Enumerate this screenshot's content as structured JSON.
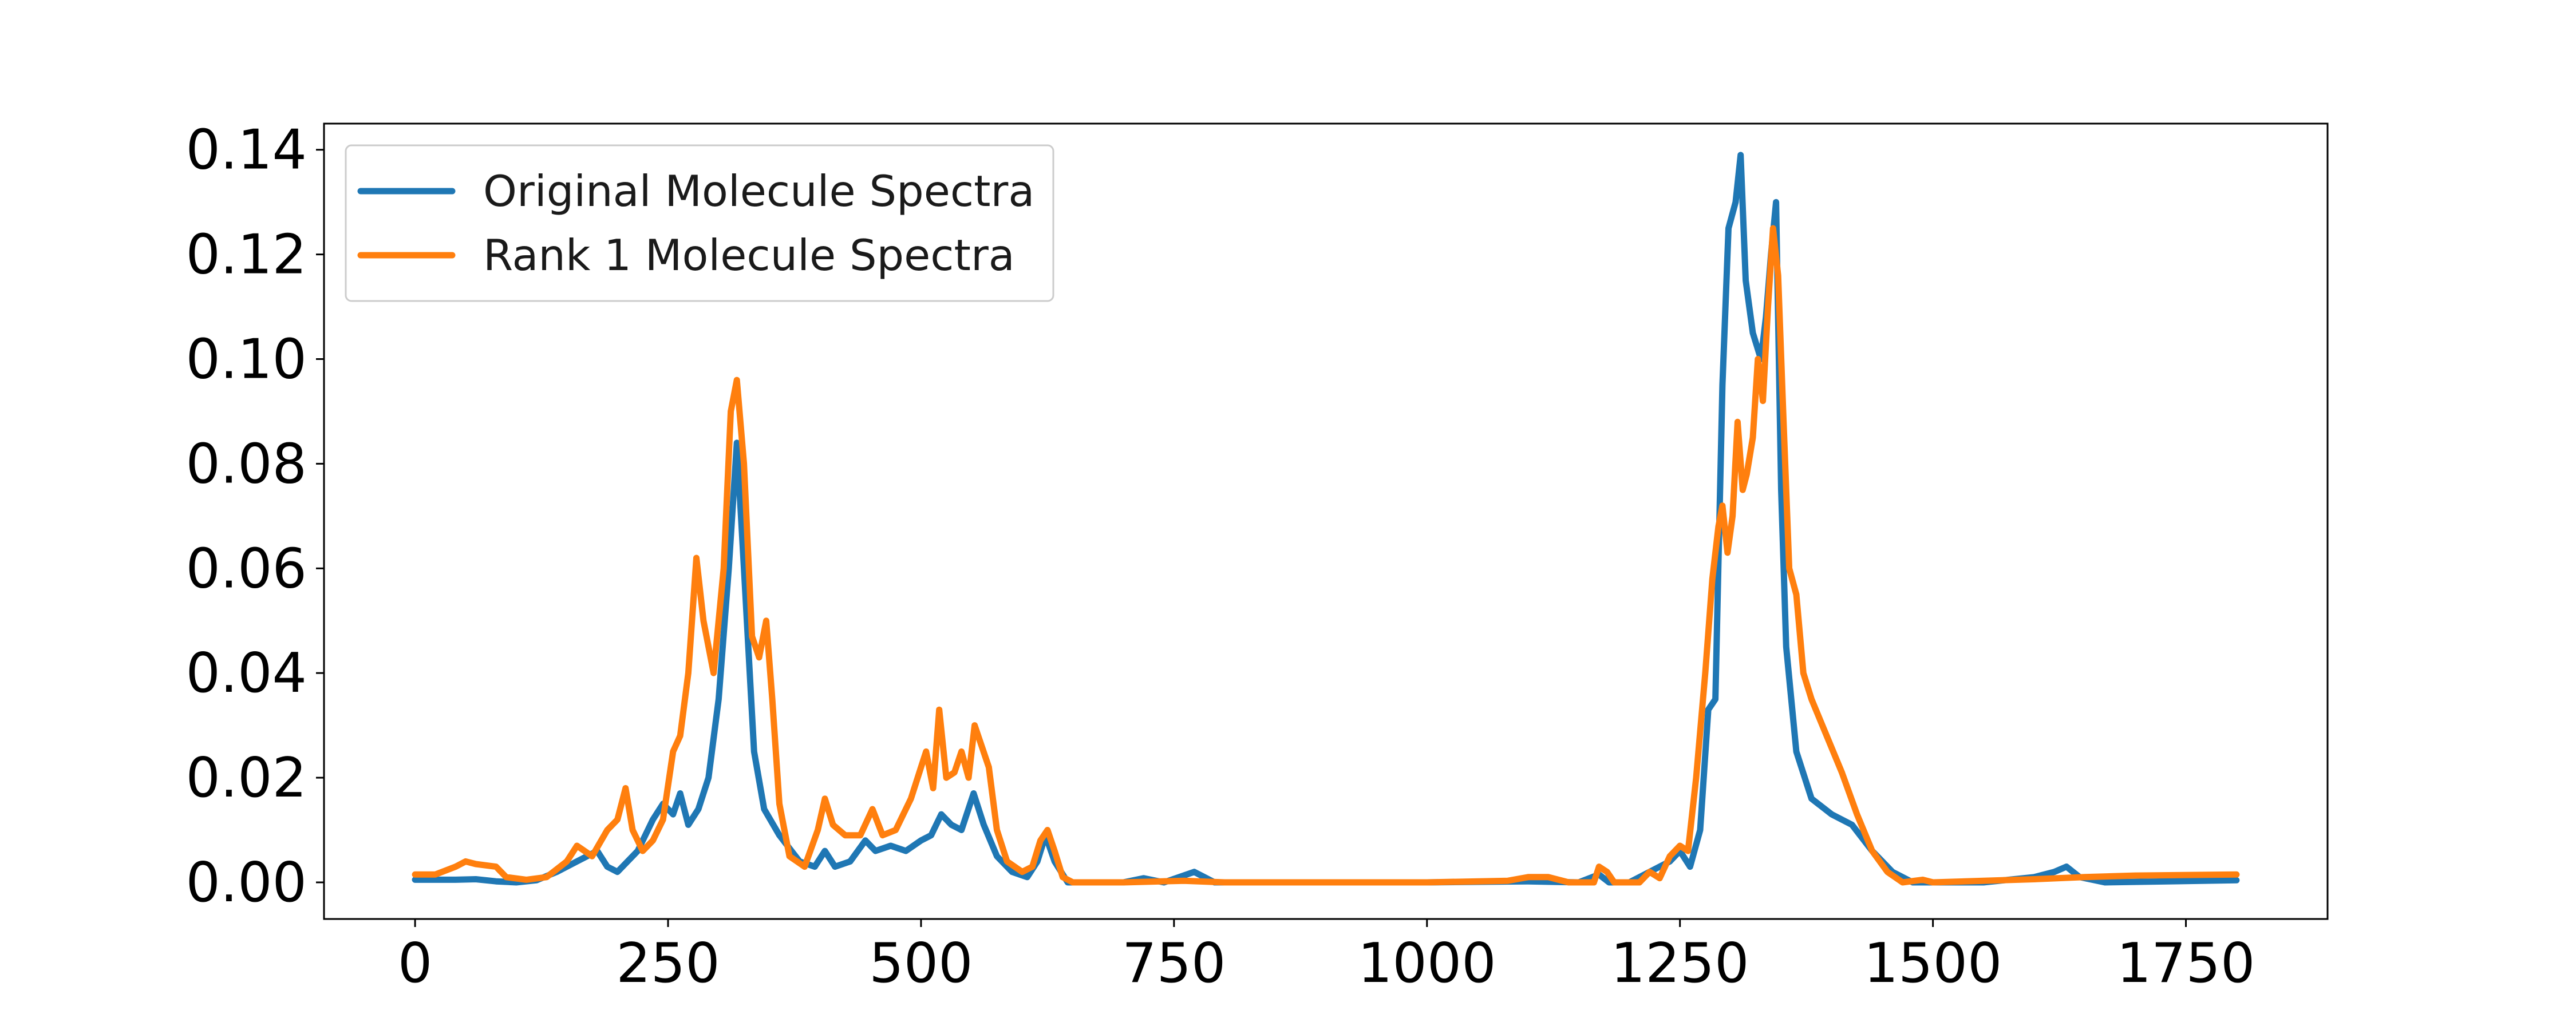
{
  "chart_data": {
    "type": "line",
    "title": "",
    "xlabel": "",
    "ylabel": "",
    "xlim": [
      -90,
      1890
    ],
    "ylim": [
      -0.007,
      0.145
    ],
    "x_ticks": [
      0,
      250,
      500,
      750,
      1000,
      1250,
      1500,
      1750
    ],
    "x_tick_labels": [
      "0",
      "250",
      "500",
      "750",
      "1000",
      "1250",
      "1500",
      "1750"
    ],
    "y_ticks": [
      0.0,
      0.02,
      0.04,
      0.06,
      0.08,
      0.1,
      0.12,
      0.14
    ],
    "y_tick_labels": [
      "0.00",
      "0.02",
      "0.04",
      "0.06",
      "0.08",
      "0.10",
      "0.12",
      "0.14"
    ],
    "grid": false,
    "legend_position": "top-left",
    "series": [
      {
        "name": "Original Molecule Spectra",
        "color": "#1f77b4",
        "points": [
          [
            0,
            0.0005
          ],
          [
            40,
            0.0005
          ],
          [
            60,
            0.0006
          ],
          [
            80,
            0.0002
          ],
          [
            100,
            0.0
          ],
          [
            120,
            0.0004
          ],
          [
            140,
            0.002
          ],
          [
            160,
            0.004
          ],
          [
            180,
            0.006
          ],
          [
            190,
            0.003
          ],
          [
            200,
            0.002
          ],
          [
            220,
            0.006
          ],
          [
            235,
            0.012
          ],
          [
            245,
            0.015
          ],
          [
            255,
            0.013
          ],
          [
            262,
            0.017
          ],
          [
            270,
            0.011
          ],
          [
            280,
            0.014
          ],
          [
            290,
            0.02
          ],
          [
            300,
            0.035
          ],
          [
            310,
            0.06
          ],
          [
            318,
            0.084
          ],
          [
            325,
            0.06
          ],
          [
            335,
            0.025
          ],
          [
            345,
            0.014
          ],
          [
            360,
            0.009
          ],
          [
            380,
            0.004
          ],
          [
            395,
            0.003
          ],
          [
            405,
            0.006
          ],
          [
            415,
            0.003
          ],
          [
            430,
            0.004
          ],
          [
            445,
            0.008
          ],
          [
            455,
            0.006
          ],
          [
            470,
            0.007
          ],
          [
            485,
            0.006
          ],
          [
            500,
            0.008
          ],
          [
            510,
            0.009
          ],
          [
            520,
            0.013
          ],
          [
            530,
            0.011
          ],
          [
            540,
            0.01
          ],
          [
            552,
            0.017
          ],
          [
            562,
            0.011
          ],
          [
            575,
            0.005
          ],
          [
            590,
            0.002
          ],
          [
            605,
            0.001
          ],
          [
            615,
            0.004
          ],
          [
            623,
            0.009
          ],
          [
            632,
            0.004
          ],
          [
            645,
            0.0
          ],
          [
            700,
            0.0
          ],
          [
            720,
            0.0008
          ],
          [
            740,
            0.0
          ],
          [
            770,
            0.002
          ],
          [
            790,
            0.0
          ],
          [
            1000,
            0.0
          ],
          [
            1100,
            0.0002
          ],
          [
            1150,
            0.0
          ],
          [
            1170,
            0.0015
          ],
          [
            1180,
            0.0
          ],
          [
            1200,
            0.0
          ],
          [
            1240,
            0.004
          ],
          [
            1250,
            0.006
          ],
          [
            1260,
            0.003
          ],
          [
            1270,
            0.01
          ],
          [
            1278,
            0.033
          ],
          [
            1285,
            0.035
          ],
          [
            1292,
            0.095
          ],
          [
            1298,
            0.125
          ],
          [
            1305,
            0.13
          ],
          [
            1310,
            0.139
          ],
          [
            1315,
            0.115
          ],
          [
            1322,
            0.105
          ],
          [
            1330,
            0.1
          ],
          [
            1335,
            0.108
          ],
          [
            1340,
            0.12
          ],
          [
            1345,
            0.13
          ],
          [
            1350,
            0.075
          ],
          [
            1355,
            0.045
          ],
          [
            1365,
            0.025
          ],
          [
            1380,
            0.016
          ],
          [
            1400,
            0.013
          ],
          [
            1420,
            0.011
          ],
          [
            1440,
            0.006
          ],
          [
            1460,
            0.002
          ],
          [
            1480,
            0.0
          ],
          [
            1500,
            0.0
          ],
          [
            1550,
            0.0
          ],
          [
            1600,
            0.001
          ],
          [
            1620,
            0.002
          ],
          [
            1632,
            0.003
          ],
          [
            1645,
            0.001
          ],
          [
            1670,
            0.0
          ],
          [
            1800,
            0.0004
          ]
        ]
      },
      {
        "name": "Rank 1 Molecule Spectra",
        "color": "#ff7f0e",
        "points": [
          [
            0,
            0.0015
          ],
          [
            20,
            0.0015
          ],
          [
            40,
            0.003
          ],
          [
            50,
            0.004
          ],
          [
            60,
            0.0035
          ],
          [
            80,
            0.003
          ],
          [
            90,
            0.001
          ],
          [
            110,
            0.0005
          ],
          [
            130,
            0.001
          ],
          [
            150,
            0.004
          ],
          [
            160,
            0.007
          ],
          [
            175,
            0.005
          ],
          [
            190,
            0.01
          ],
          [
            200,
            0.012
          ],
          [
            208,
            0.018
          ],
          [
            215,
            0.01
          ],
          [
            225,
            0.006
          ],
          [
            235,
            0.008
          ],
          [
            245,
            0.012
          ],
          [
            255,
            0.025
          ],
          [
            262,
            0.028
          ],
          [
            270,
            0.04
          ],
          [
            278,
            0.062
          ],
          [
            285,
            0.05
          ],
          [
            295,
            0.04
          ],
          [
            305,
            0.06
          ],
          [
            312,
            0.09
          ],
          [
            318,
            0.096
          ],
          [
            325,
            0.08
          ],
          [
            333,
            0.047
          ],
          [
            340,
            0.043
          ],
          [
            347,
            0.05
          ],
          [
            353,
            0.035
          ],
          [
            360,
            0.015
          ],
          [
            370,
            0.005
          ],
          [
            385,
            0.003
          ],
          [
            398,
            0.01
          ],
          [
            405,
            0.016
          ],
          [
            413,
            0.011
          ],
          [
            425,
            0.009
          ],
          [
            440,
            0.009
          ],
          [
            452,
            0.014
          ],
          [
            462,
            0.009
          ],
          [
            475,
            0.01
          ],
          [
            490,
            0.016
          ],
          [
            500,
            0.022
          ],
          [
            505,
            0.025
          ],
          [
            512,
            0.018
          ],
          [
            518,
            0.033
          ],
          [
            525,
            0.02
          ],
          [
            533,
            0.021
          ],
          [
            540,
            0.025
          ],
          [
            547,
            0.02
          ],
          [
            553,
            0.03
          ],
          [
            560,
            0.026
          ],
          [
            567,
            0.022
          ],
          [
            575,
            0.01
          ],
          [
            585,
            0.004
          ],
          [
            600,
            0.002
          ],
          [
            610,
            0.003
          ],
          [
            618,
            0.008
          ],
          [
            625,
            0.01
          ],
          [
            632,
            0.006
          ],
          [
            640,
            0.001
          ],
          [
            650,
            0.0
          ],
          [
            700,
            0.0
          ],
          [
            760,
            0.0003
          ],
          [
            800,
            0.0
          ],
          [
            1000,
            0.0
          ],
          [
            1080,
            0.0003
          ],
          [
            1100,
            0.001
          ],
          [
            1120,
            0.001
          ],
          [
            1140,
            0.0
          ],
          [
            1165,
            0.0
          ],
          [
            1170,
            0.003
          ],
          [
            1178,
            0.002
          ],
          [
            1185,
            0.0
          ],
          [
            1210,
            0.0
          ],
          [
            1220,
            0.002
          ],
          [
            1230,
            0.0008
          ],
          [
            1240,
            0.005
          ],
          [
            1250,
            0.007
          ],
          [
            1258,
            0.006
          ],
          [
            1266,
            0.02
          ],
          [
            1275,
            0.04
          ],
          [
            1282,
            0.058
          ],
          [
            1288,
            0.068
          ],
          [
            1292,
            0.072
          ],
          [
            1297,
            0.063
          ],
          [
            1302,
            0.07
          ],
          [
            1307,
            0.088
          ],
          [
            1312,
            0.075
          ],
          [
            1316,
            0.078
          ],
          [
            1322,
            0.085
          ],
          [
            1327,
            0.1
          ],
          [
            1332,
            0.092
          ],
          [
            1337,
            0.11
          ],
          [
            1342,
            0.125
          ],
          [
            1347,
            0.116
          ],
          [
            1352,
            0.09
          ],
          [
            1358,
            0.06
          ],
          [
            1365,
            0.055
          ],
          [
            1372,
            0.04
          ],
          [
            1380,
            0.035
          ],
          [
            1395,
            0.028
          ],
          [
            1410,
            0.021
          ],
          [
            1425,
            0.013
          ],
          [
            1440,
            0.006
          ],
          [
            1455,
            0.002
          ],
          [
            1470,
            0.0
          ],
          [
            1490,
            0.0005
          ],
          [
            1500,
            0.0
          ],
          [
            1600,
            0.0006
          ],
          [
            1650,
            0.001
          ],
          [
            1700,
            0.0013
          ],
          [
            1800,
            0.0015
          ]
        ]
      }
    ]
  }
}
